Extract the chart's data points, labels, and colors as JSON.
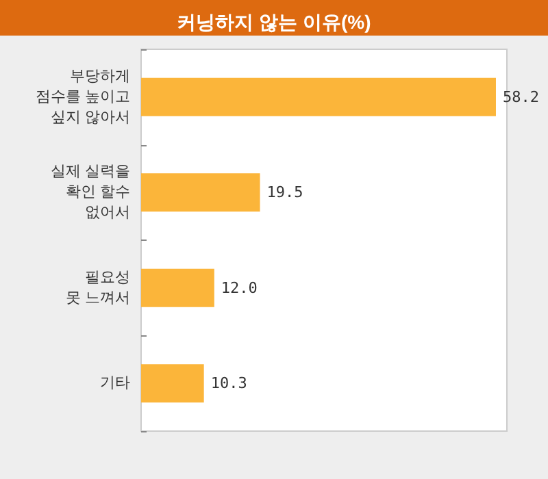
{
  "chart_data": {
    "type": "bar",
    "title": "커닝하지 않는 이유(%)",
    "orientation": "horizontal",
    "categories": [
      "부당하게\n점수를 높이고\n싶지 않아서",
      "실제 실력을\n확인 할수\n없어서",
      "필요성\n못 느껴서",
      "기타"
    ],
    "values": [
      58.2,
      19.5,
      12.0,
      10.3
    ],
    "color": "#fbb53a",
    "value_labels": [
      "58.2",
      "19.5",
      "12.0",
      "10.3"
    ]
  }
}
